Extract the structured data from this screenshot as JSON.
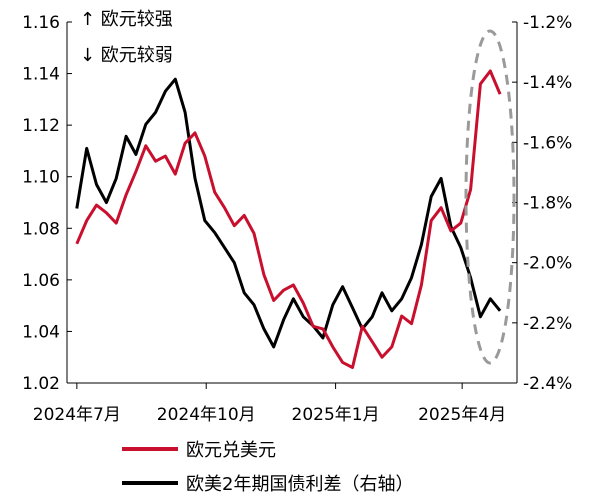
{
  "chart_data": {
    "type": "line",
    "title": "",
    "annotations": [
      "↑ 欧元较强",
      "↓ 欧元较弱"
    ],
    "x_ticks": [
      "2024年7月",
      "2024年10月",
      "2025年1月",
      "2025年4月"
    ],
    "left_axis": {
      "ylim": [
        1.02,
        1.16
      ],
      "ticks": [
        "1.02",
        "1.04",
        "1.06",
        "1.08",
        "1.10",
        "1.12",
        "1.14",
        "1.16"
      ]
    },
    "right_axis": {
      "ylim": [
        -2.4,
        -1.2
      ],
      "ticks": [
        "-1.2%",
        "-1.4%",
        "-1.6%",
        "-1.8%",
        "-2.0%",
        "-2.2%",
        "-2.4%"
      ]
    },
    "grid": false,
    "legend_position": "bottom",
    "series": [
      {
        "name": "欧元兑美元",
        "axis": "left",
        "color": "#c8102e",
        "x": [
          "2024-07-01",
          "2024-07-08",
          "2024-07-15",
          "2024-07-22",
          "2024-07-29",
          "2024-08-05",
          "2024-08-12",
          "2024-08-19",
          "2024-08-26",
          "2024-09-02",
          "2024-09-09",
          "2024-09-16",
          "2024-09-23",
          "2024-09-30",
          "2024-10-07",
          "2024-10-14",
          "2024-10-21",
          "2024-10-28",
          "2024-11-04",
          "2024-11-11",
          "2024-11-18",
          "2024-11-25",
          "2024-12-02",
          "2024-12-09",
          "2024-12-16",
          "2024-12-23",
          "2024-12-30",
          "2025-01-06",
          "2025-01-13",
          "2025-01-20",
          "2025-01-27",
          "2025-02-03",
          "2025-02-10",
          "2025-02-17",
          "2025-02-24",
          "2025-03-03",
          "2025-03-10",
          "2025-03-17",
          "2025-03-24",
          "2025-03-31",
          "2025-04-07",
          "2025-04-14",
          "2025-04-21",
          "2025-04-28"
        ],
        "values": [
          1.074,
          1.083,
          1.089,
          1.086,
          1.082,
          1.093,
          1.102,
          1.112,
          1.106,
          1.108,
          1.101,
          1.113,
          1.117,
          1.108,
          1.094,
          1.088,
          1.081,
          1.085,
          1.078,
          1.062,
          1.052,
          1.056,
          1.058,
          1.051,
          1.042,
          1.041,
          1.034,
          1.028,
          1.026,
          1.042,
          1.036,
          1.03,
          1.034,
          1.046,
          1.043,
          1.058,
          1.083,
          1.088,
          1.079,
          1.082,
          1.095,
          1.136,
          1.141,
          1.132
        ]
      },
      {
        "name": "欧美2年期国债利差（右轴）",
        "axis": "right",
        "color": "#000000",
        "x": [
          "2024-07-01",
          "2024-07-08",
          "2024-07-15",
          "2024-07-22",
          "2024-07-29",
          "2024-08-05",
          "2024-08-12",
          "2024-08-19",
          "2024-08-26",
          "2024-09-02",
          "2024-09-09",
          "2024-09-16",
          "2024-09-23",
          "2024-09-30",
          "2024-10-07",
          "2024-10-14",
          "2024-10-21",
          "2024-10-28",
          "2024-11-04",
          "2024-11-11",
          "2024-11-18",
          "2024-11-25",
          "2024-12-02",
          "2024-12-09",
          "2024-12-16",
          "2024-12-23",
          "2024-12-30",
          "2025-01-06",
          "2025-01-13",
          "2025-01-20",
          "2025-01-27",
          "2025-02-03",
          "2025-02-10",
          "2025-02-17",
          "2025-02-24",
          "2025-03-03",
          "2025-03-10",
          "2025-03-17",
          "2025-03-24",
          "2025-03-31",
          "2025-04-07",
          "2025-04-14",
          "2025-04-21",
          "2025-04-28"
        ],
        "values": [
          -1.82,
          -1.62,
          -1.74,
          -1.8,
          -1.72,
          -1.58,
          -1.64,
          -1.54,
          -1.5,
          -1.43,
          -1.39,
          -1.5,
          -1.72,
          -1.86,
          -1.9,
          -1.95,
          -2.0,
          -2.1,
          -2.14,
          -2.22,
          -2.28,
          -2.19,
          -2.12,
          -2.18,
          -2.21,
          -2.25,
          -2.14,
          -2.08,
          -2.15,
          -2.22,
          -2.18,
          -2.1,
          -2.16,
          -2.12,
          -2.05,
          -1.94,
          -1.78,
          -1.72,
          -1.88,
          -1.95,
          -2.05,
          -2.18,
          -2.12,
          -2.16
        ]
      }
    ]
  }
}
